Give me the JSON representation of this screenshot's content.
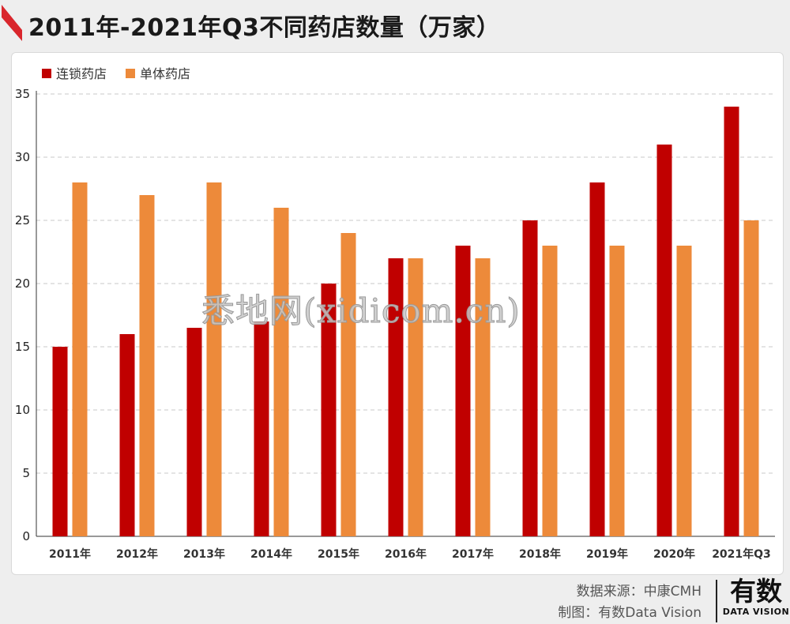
{
  "title": "2011年-2021年Q3不同药店数量（万家）",
  "colors": {
    "chain": "#c00000",
    "single": "#ed8a3a",
    "flag": "#d9262c"
  },
  "chart_data": {
    "type": "bar",
    "title": "2011年-2021年Q3不同药店数量（万家）",
    "categories": [
      "2011年",
      "2012年",
      "2013年",
      "2014年",
      "2015年",
      "2016年",
      "2017年",
      "2018年",
      "2019年",
      "2020年",
      "2021年Q3"
    ],
    "series": [
      {
        "name": "连锁药店",
        "color": "#c00000",
        "values": [
          15,
          16,
          16.5,
          17,
          20,
          22,
          23,
          25,
          28,
          31,
          34
        ]
      },
      {
        "name": "单体药店",
        "color": "#ed8a3a",
        "values": [
          28,
          27,
          28,
          26,
          24,
          22,
          22,
          23,
          23,
          23,
          25
        ]
      }
    ],
    "yticks": [
      0,
      5,
      10,
      15,
      20,
      25,
      30,
      35
    ],
    "ylim": [
      0,
      35
    ],
    "grid": true,
    "legend": "top-left"
  },
  "watermark": "悉地网(xidicom.cn)",
  "footer": {
    "source": "数据来源：中康CMH",
    "producer": "制图：有数Data Vision"
  },
  "brand": {
    "main": "有数",
    "sub": "DATA VISION"
  }
}
